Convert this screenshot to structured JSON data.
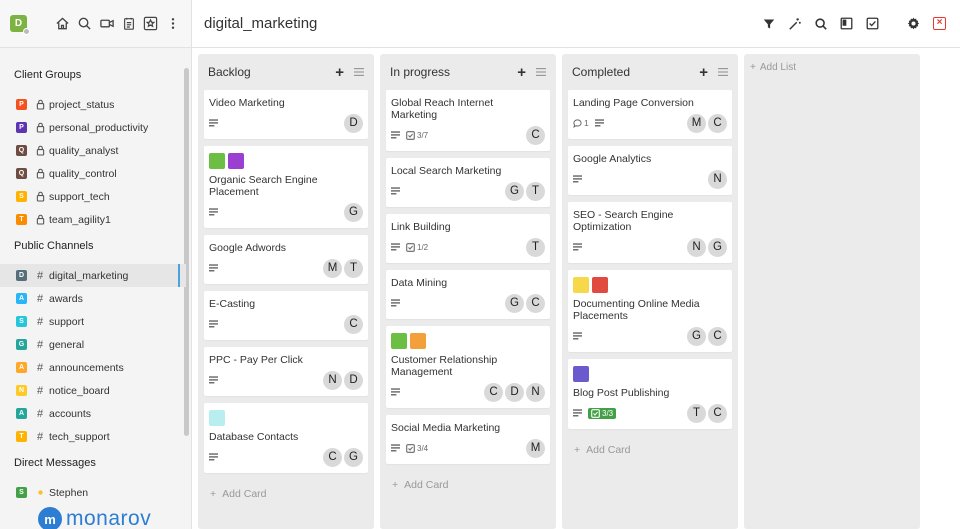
{
  "sidebar": {
    "avatar_letter": "D",
    "sections": {
      "client_groups": "Client Groups",
      "public_channels": "Public Channels",
      "direct_messages": "Direct Messages"
    },
    "client_groups": [
      {
        "letter": "P",
        "color": "#f4511e",
        "name": "project_status"
      },
      {
        "letter": "P",
        "color": "#5e35b1",
        "name": "personal_productivity"
      },
      {
        "letter": "Q",
        "color": "#6d4c41",
        "name": "quality_analyst"
      },
      {
        "letter": "Q",
        "color": "#6d4c41",
        "name": "quality_control"
      },
      {
        "letter": "S",
        "color": "#ffb300",
        "name": "support_tech"
      },
      {
        "letter": "T",
        "color": "#fb8c00",
        "name": "team_agility1"
      }
    ],
    "public_channels": [
      {
        "letter": "D",
        "color": "#546e7a",
        "name": "digital_marketing",
        "active": true
      },
      {
        "letter": "A",
        "color": "#29b6f6",
        "name": "awards"
      },
      {
        "letter": "S",
        "color": "#26c6da",
        "name": "support"
      },
      {
        "letter": "G",
        "color": "#26a69a",
        "name": "general"
      },
      {
        "letter": "A",
        "color": "#ffa726",
        "name": "announcements"
      },
      {
        "letter": "N",
        "color": "#ffca28",
        "name": "notice_board"
      },
      {
        "letter": "A",
        "color": "#26a69a",
        "name": "accounts"
      },
      {
        "letter": "T",
        "color": "#ffb300",
        "name": "tech_support"
      }
    ],
    "direct_messages": [
      {
        "letter": "S",
        "color": "#43a047",
        "name": "Stephen"
      }
    ],
    "logo_mark": "m",
    "logo_text": "monarov"
  },
  "header": {
    "title": "digital_marketing"
  },
  "board": {
    "add_card_label": "Add Card",
    "add_list_label": "Add List",
    "lists": [
      {
        "title": "Backlog",
        "cards": [
          {
            "title": "Video Marketing",
            "labels": [],
            "members": [
              "D"
            ]
          },
          {
            "title": "Organic Search Engine Placement",
            "labels": [
              "#6cbf43",
              "#9b3fd1"
            ],
            "members": [
              "G"
            ]
          },
          {
            "title": "Google Adwords",
            "labels": [],
            "members": [
              "M",
              "T"
            ]
          },
          {
            "title": "E-Casting",
            "labels": [],
            "members": [
              "C"
            ]
          },
          {
            "title": "PPC - Pay Per Click",
            "labels": [],
            "members": [
              "N",
              "D"
            ]
          },
          {
            "title": "Database Contacts",
            "labels": [
              "#b9eef0"
            ],
            "members": [
              "C",
              "G"
            ]
          }
        ]
      },
      {
        "title": "In progress",
        "cards": [
          {
            "title": "Global Reach Internet Marketing",
            "labels": [],
            "checklist": "3/7",
            "members": [
              "C"
            ]
          },
          {
            "title": "Local Search Marketing",
            "labels": [],
            "members": [
              "G",
              "T"
            ]
          },
          {
            "title": "Link Building",
            "labels": [],
            "checklist": "1/2",
            "members": [
              "T"
            ]
          },
          {
            "title": "Data Mining",
            "labels": [],
            "members": [
              "G",
              "C"
            ]
          },
          {
            "title": "Customer Relationship Management",
            "labels": [
              "#6cbf43",
              "#f4a03a"
            ],
            "members": [
              "C",
              "D",
              "N"
            ]
          },
          {
            "title": "Social Media Marketing",
            "labels": [],
            "checklist": "3/4",
            "members": [
              "M"
            ]
          }
        ]
      },
      {
        "title": "Completed",
        "cards": [
          {
            "title": "Landing Page Conversion",
            "labels": [],
            "comments": "1",
            "members": [
              "M",
              "C"
            ]
          },
          {
            "title": "Google Analytics",
            "labels": [],
            "members": [
              "N"
            ]
          },
          {
            "title": "SEO - Search Engine Optimization",
            "labels": [],
            "members": [
              "N",
              "G"
            ]
          },
          {
            "title": "Documenting Online Media Placements",
            "labels": [
              "#f6d84a",
              "#e04a3f"
            ],
            "members": [
              "G",
              "C"
            ]
          },
          {
            "title": "Blog Post Publishing",
            "labels": [
              "#6a5acd"
            ],
            "checklist": "3/3",
            "checklist_done": true,
            "members": [
              "T",
              "C"
            ]
          }
        ]
      }
    ]
  }
}
